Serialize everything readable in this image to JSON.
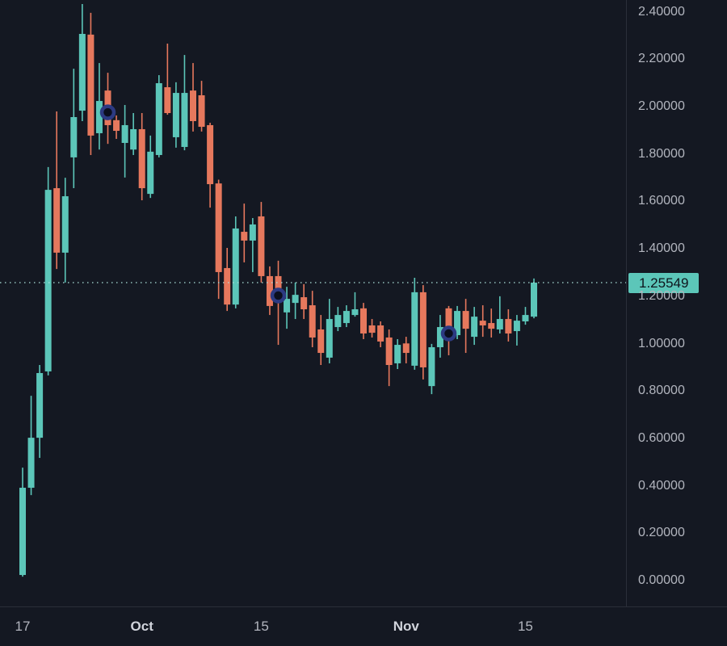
{
  "colors": {
    "background": "#141822",
    "up": "#5CC6B9",
    "down": "#E6785D",
    "axis_border": "#2A2E39",
    "axis_text": "#B2B5BE",
    "axis_text_bold": "#D1D4DC",
    "price_line": "#AEE3DD",
    "price_label_bg": "#5CC6B9",
    "price_label_text": "#0E141C",
    "marker_ring": "#2C3A82",
    "marker_fill": "#0B0F1E"
  },
  "chart_data": {
    "type": "candlestick",
    "title": "",
    "xlabel": "",
    "ylabel": "",
    "y_axis": {
      "min": 0.0,
      "max": 2.448,
      "grid": false,
      "labels": [
        "2.40000",
        "2.20000",
        "2.00000",
        "1.80000",
        "1.60000",
        "1.40000",
        "1.20000",
        "1.00000",
        "0.80000",
        "0.60000",
        "0.40000",
        "0.20000",
        "0.00000"
      ]
    },
    "x_axis_ticks": [
      {
        "label": "17",
        "index": 0,
        "bold": false
      },
      {
        "label": "Oct",
        "index": 14,
        "bold": true
      },
      {
        "label": "15",
        "index": 28,
        "bold": false
      },
      {
        "label": "Nov",
        "index": 45,
        "bold": true
      },
      {
        "label": "15",
        "index": 59,
        "bold": false
      }
    ],
    "current_price_line": {
      "label": "1.25549",
      "price": 1.25549,
      "style": "dotted"
    },
    "markers": [
      {
        "index": 10,
        "date": "Sep 27",
        "price": 1.974,
        "name": "trade-marker"
      },
      {
        "index": 30,
        "date": "Oct 17",
        "price": 1.201,
        "name": "trade-marker"
      },
      {
        "index": 50,
        "date": "Nov 6",
        "price": 1.041,
        "name": "trade-marker"
      }
    ],
    "candles": [
      {
        "date": "Sep 17",
        "o": 0.022,
        "h": 0.475,
        "l": 0.015,
        "c": 0.39
      },
      {
        "date": "Sep 18",
        "o": 0.39,
        "h": 0.778,
        "l": 0.359,
        "c": 0.601
      },
      {
        "date": "Sep 19",
        "o": 0.601,
        "h": 0.908,
        "l": 0.516,
        "c": 0.874
      },
      {
        "date": "Sep 20",
        "o": 0.881,
        "h": 1.743,
        "l": 0.864,
        "c": 1.647
      },
      {
        "date": "Sep 21",
        "o": 1.654,
        "h": 1.978,
        "l": 1.313,
        "c": 1.382
      },
      {
        "date": "Sep 22",
        "o": 1.382,
        "h": 1.698,
        "l": 1.256,
        "c": 1.62
      },
      {
        "date": "Sep 23",
        "o": 1.784,
        "h": 2.158,
        "l": 1.654,
        "c": 1.954
      },
      {
        "date": "Sep 24",
        "o": 1.981,
        "h": 2.431,
        "l": 1.937,
        "c": 2.305
      },
      {
        "date": "Sep 25",
        "o": 2.302,
        "h": 2.394,
        "l": 1.794,
        "c": 1.876
      },
      {
        "date": "Sep 26",
        "o": 1.886,
        "h": 2.182,
        "l": 1.817,
        "c": 2.022
      },
      {
        "date": "Sep 27",
        "o": 2.066,
        "h": 2.141,
        "l": 1.841,
        "c": 1.92
      },
      {
        "date": "Sep 28",
        "o": 1.941,
        "h": 1.961,
        "l": 1.862,
        "c": 1.896
      },
      {
        "date": "Sep 29",
        "o": 1.845,
        "h": 2.005,
        "l": 1.699,
        "c": 1.92
      },
      {
        "date": "Sep 30",
        "o": 1.817,
        "h": 1.971,
        "l": 1.794,
        "c": 1.903
      },
      {
        "date": "Oct 1",
        "o": 1.903,
        "h": 1.971,
        "l": 1.603,
        "c": 1.654
      },
      {
        "date": "Oct 2",
        "o": 1.63,
        "h": 1.876,
        "l": 1.613,
        "c": 1.808
      },
      {
        "date": "Oct 3",
        "o": 1.794,
        "h": 2.131,
        "l": 1.784,
        "c": 2.097
      },
      {
        "date": "Oct 4",
        "o": 2.08,
        "h": 2.264,
        "l": 1.964,
        "c": 1.971
      },
      {
        "date": "Oct 5",
        "o": 1.869,
        "h": 2.101,
        "l": 1.825,
        "c": 2.056
      },
      {
        "date": "Oct 6",
        "o": 1.828,
        "h": 2.216,
        "l": 1.814,
        "c": 2.056
      },
      {
        "date": "Oct 7",
        "o": 2.066,
        "h": 2.182,
        "l": 1.893,
        "c": 1.937
      },
      {
        "date": "Oct 8",
        "o": 2.046,
        "h": 2.107,
        "l": 1.893,
        "c": 1.913
      },
      {
        "date": "Oct 9",
        "o": 1.92,
        "h": 1.93,
        "l": 1.572,
        "c": 1.671
      },
      {
        "date": "Oct 10",
        "o": 1.674,
        "h": 1.69,
        "l": 1.187,
        "c": 1.3
      },
      {
        "date": "Oct 11",
        "o": 1.317,
        "h": 1.402,
        "l": 1.136,
        "c": 1.163
      },
      {
        "date": "Oct 12",
        "o": 1.163,
        "h": 1.535,
        "l": 1.147,
        "c": 1.484
      },
      {
        "date": "Oct 13",
        "o": 1.47,
        "h": 1.589,
        "l": 1.341,
        "c": 1.433
      },
      {
        "date": "Oct 14",
        "o": 1.433,
        "h": 1.528,
        "l": 1.3,
        "c": 1.501
      },
      {
        "date": "Oct 15",
        "o": 1.535,
        "h": 1.596,
        "l": 1.256,
        "c": 1.283
      },
      {
        "date": "Oct 16",
        "o": 1.283,
        "h": 1.324,
        "l": 1.119,
        "c": 1.157
      },
      {
        "date": "Oct 17",
        "o": 1.283,
        "h": 1.348,
        "l": 0.993,
        "c": 1.232
      },
      {
        "date": "Oct 18",
        "o": 1.13,
        "h": 1.238,
        "l": 1.061,
        "c": 1.187
      },
      {
        "date": "Oct 19",
        "o": 1.17,
        "h": 1.256,
        "l": 1.102,
        "c": 1.204
      },
      {
        "date": "Oct 20",
        "o": 1.194,
        "h": 1.249,
        "l": 1.102,
        "c": 1.143
      },
      {
        "date": "Oct 21",
        "o": 1.16,
        "h": 1.221,
        "l": 0.983,
        "c": 1.024
      },
      {
        "date": "Oct 22",
        "o": 1.058,
        "h": 1.119,
        "l": 0.908,
        "c": 0.959
      },
      {
        "date": "Oct 23",
        "o": 0.939,
        "h": 1.187,
        "l": 0.915,
        "c": 1.102
      },
      {
        "date": "Oct 24",
        "o": 1.068,
        "h": 1.153,
        "l": 1.051,
        "c": 1.119
      },
      {
        "date": "Oct 25",
        "o": 1.085,
        "h": 1.16,
        "l": 1.068,
        "c": 1.136
      },
      {
        "date": "Oct 26",
        "o": 1.119,
        "h": 1.215,
        "l": 1.112,
        "c": 1.143
      },
      {
        "date": "Oct 27",
        "o": 1.147,
        "h": 1.17,
        "l": 1.017,
        "c": 1.041
      },
      {
        "date": "Oct 28",
        "o": 1.075,
        "h": 1.102,
        "l": 1.024,
        "c": 1.044
      },
      {
        "date": "Oct 29",
        "o": 1.075,
        "h": 1.092,
        "l": 0.983,
        "c": 1.007
      },
      {
        "date": "Oct 30",
        "o": 1.024,
        "h": 1.058,
        "l": 0.819,
        "c": 0.908
      },
      {
        "date": "Oct 31",
        "o": 0.915,
        "h": 1.017,
        "l": 0.891,
        "c": 0.993
      },
      {
        "date": "Nov 1",
        "o": 0.999,
        "h": 1.027,
        "l": 0.915,
        "c": 0.959
      },
      {
        "date": "Nov 2",
        "o": 0.905,
        "h": 1.276,
        "l": 0.888,
        "c": 1.215
      },
      {
        "date": "Nov 3",
        "o": 1.215,
        "h": 1.245,
        "l": 0.847,
        "c": 0.898
      },
      {
        "date": "Nov 4",
        "o": 0.819,
        "h": 0.997,
        "l": 0.785,
        "c": 0.983
      },
      {
        "date": "Nov 5",
        "o": 0.983,
        "h": 1.119,
        "l": 0.939,
        "c": 1.068
      },
      {
        "date": "Nov 6",
        "o": 1.147,
        "h": 1.157,
        "l": 0.949,
        "c": 1.01
      },
      {
        "date": "Nov 7",
        "o": 1.034,
        "h": 1.157,
        "l": 1.017,
        "c": 1.136
      },
      {
        "date": "Nov 8",
        "o": 1.136,
        "h": 1.187,
        "l": 0.959,
        "c": 1.061
      },
      {
        "date": "Nov 9",
        "o": 1.027,
        "h": 1.153,
        "l": 0.993,
        "c": 1.112
      },
      {
        "date": "Nov 10",
        "o": 1.095,
        "h": 1.16,
        "l": 1.027,
        "c": 1.075
      },
      {
        "date": "Nov 11",
        "o": 1.085,
        "h": 1.146,
        "l": 1.024,
        "c": 1.061
      },
      {
        "date": "Nov 12",
        "o": 1.058,
        "h": 1.198,
        "l": 1.041,
        "c": 1.102
      },
      {
        "date": "Nov 13",
        "o": 1.102,
        "h": 1.143,
        "l": 1.007,
        "c": 1.041
      },
      {
        "date": "Nov 14",
        "o": 1.051,
        "h": 1.119,
        "l": 0.99,
        "c": 1.095
      },
      {
        "date": "Nov 15",
        "o": 1.092,
        "h": 1.153,
        "l": 1.078,
        "c": 1.119
      },
      {
        "date": "Nov 16",
        "o": 1.112,
        "h": 1.273,
        "l": 1.105,
        "c": 1.25549
      }
    ]
  }
}
